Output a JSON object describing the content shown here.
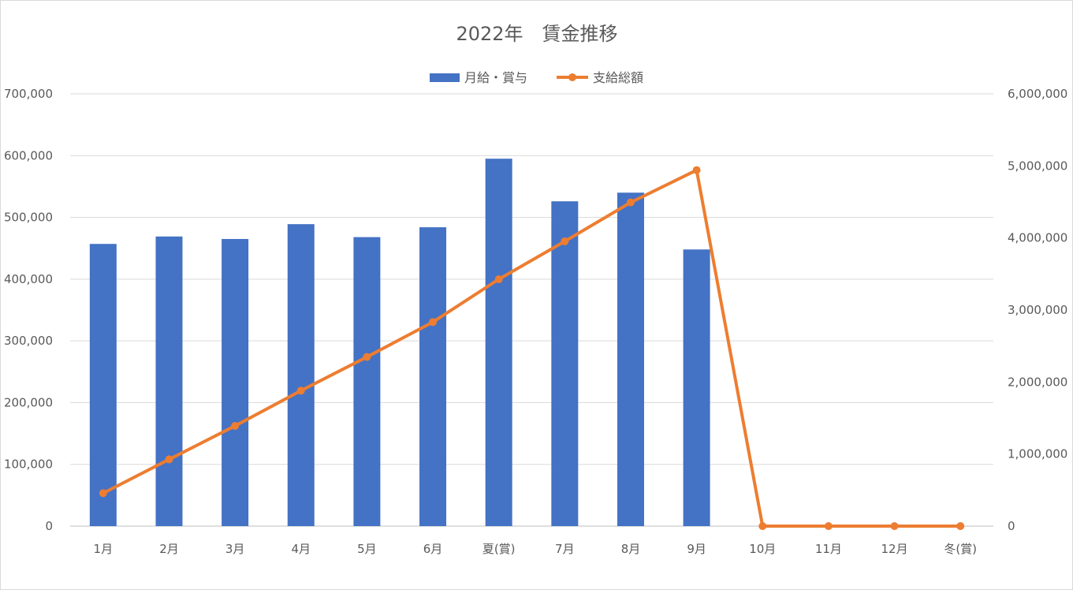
{
  "chart_data": {
    "type": "bar+line",
    "title": "2022年　賃金推移",
    "categories": [
      "1月",
      "2月",
      "3月",
      "4月",
      "5月",
      "6月",
      "夏(賞)",
      "7月",
      "8月",
      "9月",
      "10月",
      "11月",
      "12月",
      "冬(賞)"
    ],
    "series": [
      {
        "name": "月給・賞与",
        "type": "bar",
        "axis": "left",
        "color": "#4472c4",
        "values": [
          457000,
          469000,
          465000,
          489000,
          468000,
          484000,
          595000,
          526000,
          540000,
          448000,
          null,
          null,
          null,
          null
        ]
      },
      {
        "name": "支給総額",
        "type": "line",
        "axis": "right",
        "color": "#ed7d31",
        "values": [
          457000,
          926000,
          1391000,
          1880000,
          2348000,
          2832000,
          3427000,
          3953000,
          4493000,
          4941000,
          0,
          0,
          0,
          0
        ]
      }
    ],
    "y_left": {
      "min": 0,
      "max": 700000,
      "ticks": [
        "0",
        "100,000",
        "200,000",
        "300,000",
        "400,000",
        "500,000",
        "600,000",
        "700,000"
      ]
    },
    "y_right": {
      "min": 0,
      "max": 6000000,
      "ticks": [
        "0",
        "1,000,000",
        "2,000,000",
        "3,000,000",
        "4,000,000",
        "5,000,000",
        "6,000,000"
      ]
    },
    "grid": true,
    "legend": "top"
  }
}
